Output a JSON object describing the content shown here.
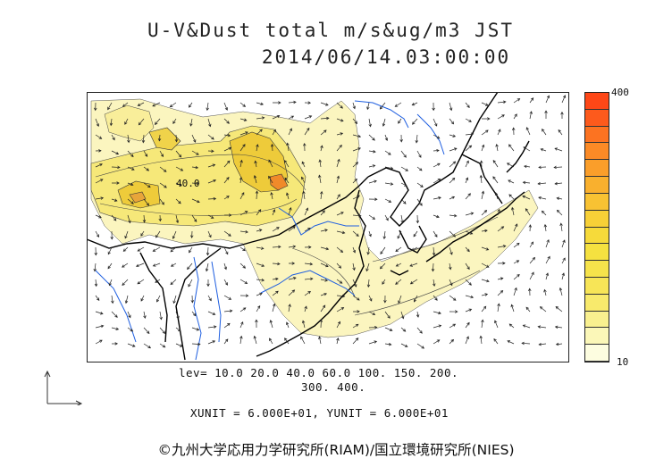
{
  "title": {
    "line1": "U-V&Dust total m/s&ug/m3 JST",
    "line2": "2014/06/14.03:00:00"
  },
  "colorbar": {
    "max_label": "400",
    "min_label": "10",
    "colors": [
      "#fdfde0",
      "#fbf7b8",
      "#f9f08f",
      "#f8ea6c",
      "#f7e557",
      "#f6e34b",
      "#f5e140",
      "#f6da3a",
      "#f7d037",
      "#f8c233",
      "#f9b02e",
      "#fa9e2a",
      "#fb8a26",
      "#fc7321",
      "#fd5a1c",
      "#fe4717"
    ]
  },
  "contour_label": "40.0",
  "levels": {
    "line1": "lev= 10.0 20.0 40.0 60.0 100. 150. 200.",
    "line2": "300. 400."
  },
  "units": "XUNIT = 6.000E+01, YUNIT = 6.000E+01",
  "copyright": "©九州大学応用力学研究所(RIAM)/国立環境研究所(NIES)",
  "colors": {
    "dust_light": "#fbf5bf",
    "dust_mid": "#f6e879",
    "dust_high": "#eecb3a",
    "dust_peak": "#f08a2a",
    "coast": "#000000",
    "rivers": "#1f5fe0"
  }
}
